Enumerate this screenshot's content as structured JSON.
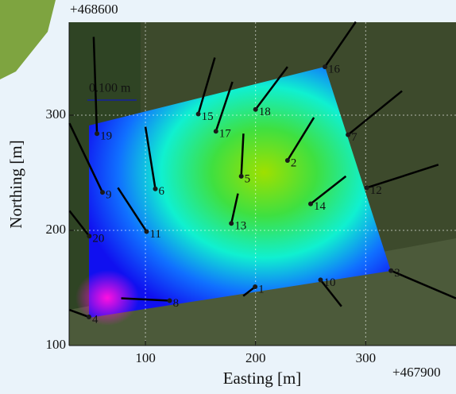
{
  "chart_data": {
    "type": "scatter",
    "xlabel": "Easting [m]",
    "ylabel": "Northing [m]",
    "x_offset_label": "+467900",
    "y_offset_label": "+468600",
    "scale_label": "0.100 m",
    "xlim": [
      30.7,
      382
    ],
    "ylim": [
      100,
      380.7
    ],
    "xticks": [
      100,
      200,
      300
    ],
    "yticks": [
      100,
      200,
      300
    ],
    "grid": true,
    "point_color": "#1a1a1a",
    "vector_color": "#000000",
    "labels": [
      "1",
      "2",
      "3",
      "4",
      "5",
      "6",
      "7",
      "8",
      "9",
      "10",
      "11",
      "12",
      "13",
      "14",
      "15",
      "16",
      "17",
      "18",
      "19",
      "20"
    ],
    "x": [
      199.6,
      229,
      323,
      48.7,
      187,
      109,
      284,
      122,
      61,
      259,
      101,
      301,
      178,
      250,
      148,
      263,
      164,
      200,
      56,
      49
    ],
    "y": [
      151,
      260.7,
      165,
      124.8,
      247,
      236,
      283,
      139,
      233,
      157,
      199,
      237,
      206,
      223,
      301,
      342,
      286,
      305,
      284,
      195
    ],
    "end_x": [
      188.8,
      253,
      382,
      31,
      189,
      100,
      333,
      78,
      31,
      278,
      75,
      366,
      184,
      282,
      163,
      291,
      179,
      229,
      53,
      31
    ],
    "end_y": [
      143,
      298,
      141,
      131,
      284,
      290,
      321,
      141,
      293,
      134,
      237,
      257,
      232,
      247,
      350,
      381,
      329,
      342,
      368,
      217
    ]
  }
}
